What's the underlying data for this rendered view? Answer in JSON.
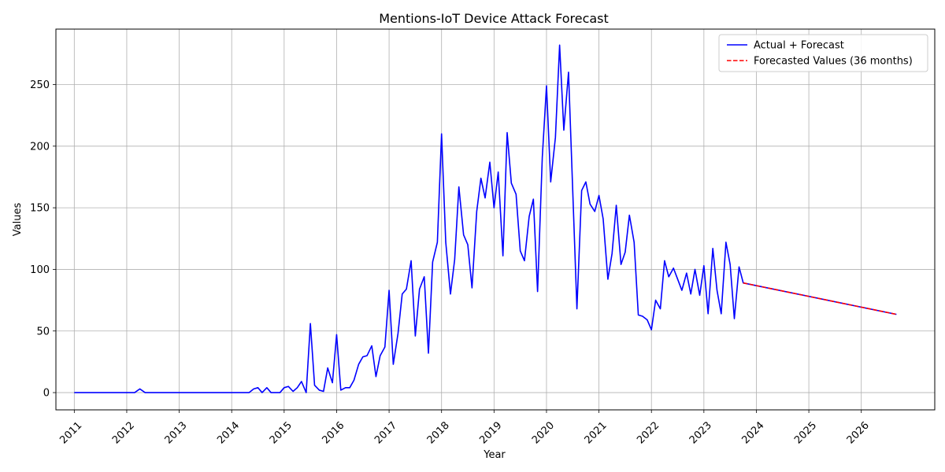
{
  "chart_data": {
    "type": "line",
    "title": "Mentions-IoT Device Attack Forecast",
    "xlabel": "Year",
    "ylabel": "Values",
    "xlim": [
      2010.65,
      2027.4
    ],
    "ylim": [
      -14,
      295
    ],
    "grid": true,
    "legend_position": "top-right",
    "x_ticks": [
      2011,
      2012,
      2013,
      2014,
      2015,
      2016,
      2017,
      2018,
      2019,
      2020,
      2021,
      2022,
      2023,
      2024,
      2025,
      2026
    ],
    "y_ticks": [
      0,
      50,
      100,
      150,
      200,
      250
    ],
    "series": [
      {
        "name": "Actual + Forecast",
        "color": "#0000ff",
        "style": "solid",
        "points": [
          [
            2011.0,
            0
          ],
          [
            2012.0,
            0
          ],
          [
            2012.15,
            0
          ],
          [
            2012.25,
            3
          ],
          [
            2012.35,
            0
          ],
          [
            2013.0,
            0
          ],
          [
            2014.0,
            0
          ],
          [
            2014.33,
            0
          ],
          [
            2014.42,
            3
          ],
          [
            2014.5,
            4
          ],
          [
            2014.58,
            0
          ],
          [
            2014.67,
            4
          ],
          [
            2014.75,
            0
          ],
          [
            2014.83,
            0
          ],
          [
            2014.92,
            0
          ],
          [
            2015.0,
            4
          ],
          [
            2015.08,
            5
          ],
          [
            2015.17,
            1
          ],
          [
            2015.25,
            4
          ],
          [
            2015.33,
            9
          ],
          [
            2015.42,
            0
          ],
          [
            2015.5,
            56
          ],
          [
            2015.58,
            6
          ],
          [
            2015.67,
            2
          ],
          [
            2015.75,
            1
          ],
          [
            2015.83,
            20
          ],
          [
            2015.92,
            8
          ],
          [
            2016.0,
            47
          ],
          [
            2016.08,
            2
          ],
          [
            2016.17,
            4
          ],
          [
            2016.25,
            4
          ],
          [
            2016.33,
            10
          ],
          [
            2016.42,
            23
          ],
          [
            2016.5,
            29
          ],
          [
            2016.58,
            30
          ],
          [
            2016.67,
            38
          ],
          [
            2016.75,
            13
          ],
          [
            2016.83,
            30
          ],
          [
            2016.92,
            37
          ],
          [
            2017.0,
            83
          ],
          [
            2017.08,
            23
          ],
          [
            2017.17,
            48
          ],
          [
            2017.25,
            80
          ],
          [
            2017.33,
            84
          ],
          [
            2017.42,
            107
          ],
          [
            2017.5,
            46
          ],
          [
            2017.58,
            84
          ],
          [
            2017.67,
            94
          ],
          [
            2017.75,
            32
          ],
          [
            2017.83,
            106
          ],
          [
            2017.92,
            122
          ],
          [
            2018.0,
            210
          ],
          [
            2018.08,
            122
          ],
          [
            2018.17,
            80
          ],
          [
            2018.25,
            108
          ],
          [
            2018.33,
            167
          ],
          [
            2018.42,
            128
          ],
          [
            2018.5,
            120
          ],
          [
            2018.58,
            85
          ],
          [
            2018.67,
            147
          ],
          [
            2018.75,
            174
          ],
          [
            2018.83,
            158
          ],
          [
            2018.92,
            187
          ],
          [
            2019.0,
            150
          ],
          [
            2019.08,
            179
          ],
          [
            2019.17,
            111
          ],
          [
            2019.25,
            211
          ],
          [
            2019.33,
            170
          ],
          [
            2019.42,
            161
          ],
          [
            2019.5,
            115
          ],
          [
            2019.58,
            107
          ],
          [
            2019.67,
            143
          ],
          [
            2019.75,
            157
          ],
          [
            2019.83,
            82
          ],
          [
            2019.92,
            191
          ],
          [
            2020.0,
            249
          ],
          [
            2020.08,
            171
          ],
          [
            2020.17,
            207
          ],
          [
            2020.25,
            282
          ],
          [
            2020.33,
            213
          ],
          [
            2020.42,
            260
          ],
          [
            2020.5,
            164
          ],
          [
            2020.58,
            68
          ],
          [
            2020.67,
            164
          ],
          [
            2020.75,
            171
          ],
          [
            2020.83,
            153
          ],
          [
            2020.92,
            147
          ],
          [
            2021.0,
            160
          ],
          [
            2021.08,
            141
          ],
          [
            2021.17,
            92
          ],
          [
            2021.25,
            113
          ],
          [
            2021.33,
            152
          ],
          [
            2021.42,
            104
          ],
          [
            2021.5,
            114
          ],
          [
            2021.58,
            144
          ],
          [
            2021.67,
            122
          ],
          [
            2021.75,
            63
          ],
          [
            2021.83,
            62
          ],
          [
            2021.92,
            59
          ],
          [
            2022.0,
            51
          ],
          [
            2022.08,
            75
          ],
          [
            2022.17,
            68
          ],
          [
            2022.25,
            107
          ],
          [
            2022.33,
            94
          ],
          [
            2022.42,
            101
          ],
          [
            2022.5,
            92
          ],
          [
            2022.58,
            83
          ],
          [
            2022.67,
            97
          ],
          [
            2022.75,
            80
          ],
          [
            2022.83,
            100
          ],
          [
            2022.92,
            79
          ],
          [
            2023.0,
            103
          ],
          [
            2023.08,
            64
          ],
          [
            2023.17,
            117
          ],
          [
            2023.25,
            83
          ],
          [
            2023.33,
            64
          ],
          [
            2023.42,
            122
          ],
          [
            2023.5,
            104
          ],
          [
            2023.58,
            60
          ],
          [
            2023.67,
            102
          ],
          [
            2023.75,
            89
          ],
          [
            2026.67,
            63.5
          ]
        ]
      },
      {
        "name": "Forecasted Values (36 months)",
        "color": "#ff0000",
        "style": "dashed",
        "points": [
          [
            2023.75,
            89
          ],
          [
            2026.67,
            63.5
          ]
        ]
      }
    ]
  }
}
